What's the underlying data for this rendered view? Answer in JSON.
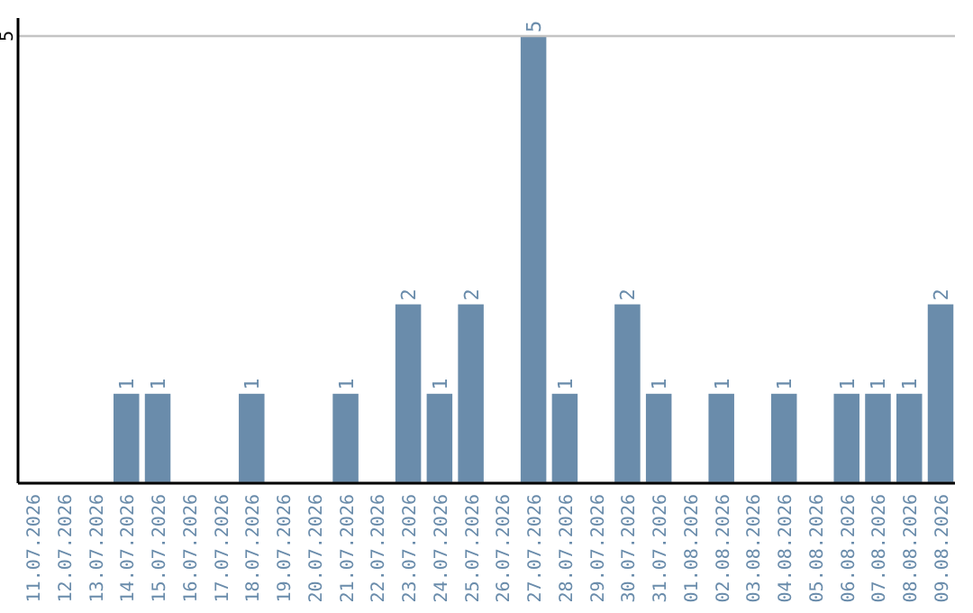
{
  "chart_data": {
    "type": "bar",
    "categories": [
      "11.07.2026",
      "12.07.2026",
      "13.07.2026",
      "14.07.2026",
      "15.07.2026",
      "16.07.2026",
      "17.07.2026",
      "18.07.2026",
      "19.07.2026",
      "20.07.2026",
      "21.07.2026",
      "22.07.2026",
      "23.07.2026",
      "24.07.2026",
      "25.07.2026",
      "26.07.2026",
      "27.07.2026",
      "28.07.2026",
      "29.07.2026",
      "30.07.2026",
      "31.07.2026",
      "01.08.2026",
      "02.08.2026",
      "03.08.2026",
      "04.08.2026",
      "05.08.2026",
      "06.08.2026",
      "07.08.2026",
      "08.08.2026",
      "09.08.2026"
    ],
    "values": [
      0,
      0,
      0,
      1,
      1,
      0,
      0,
      1,
      0,
      0,
      1,
      0,
      2,
      1,
      2,
      0,
      5,
      1,
      0,
      2,
      1,
      0,
      1,
      0,
      1,
      0,
      1,
      1,
      1,
      2
    ],
    "value_labels": [
      null,
      null,
      null,
      "1",
      "1",
      null,
      null,
      "1",
      null,
      null,
      "1",
      null,
      "2",
      "1",
      "2",
      null,
      "5",
      "1",
      null,
      "2",
      "1",
      null,
      "1",
      null,
      "1",
      null,
      "1",
      "1",
      "1",
      "2"
    ],
    "color": "#6a8cab",
    "ylim": [
      0,
      5
    ],
    "yticks": [
      {
        "value": 0,
        "label": null
      },
      5
    ],
    "grid": "y"
  }
}
